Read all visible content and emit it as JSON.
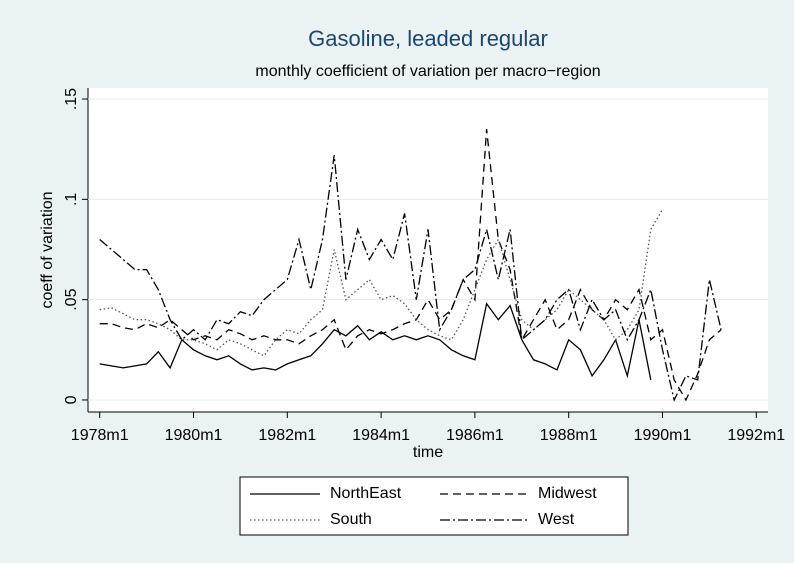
{
  "chart_data": {
    "type": "line",
    "title": "Gasoline, leaded regular",
    "subtitle": "monthly coefficient of variation per macro−region",
    "x_label": "time",
    "y_label": "coeff of variation",
    "x": [
      216,
      219,
      222,
      225,
      228,
      231,
      234,
      237,
      240,
      243,
      246,
      249,
      252,
      255,
      258,
      261,
      264,
      267,
      270,
      273,
      276,
      279,
      282,
      285,
      288,
      291,
      294,
      297,
      300,
      303,
      306,
      309,
      312,
      315,
      318,
      321,
      324,
      327,
      330,
      333,
      336,
      339,
      342,
      345,
      348,
      351,
      354,
      357,
      360,
      363,
      366,
      369,
      372,
      375
    ],
    "xlim": [
      213,
      387
    ],
    "xticks": [
      {
        "value": 216,
        "label": "1978m1"
      },
      {
        "value": 240,
        "label": "1980m1"
      },
      {
        "value": 264,
        "label": "1982m1"
      },
      {
        "value": 288,
        "label": "1984m1"
      },
      {
        "value": 312,
        "label": "1986m1"
      },
      {
        "value": 336,
        "label": "1988m1"
      },
      {
        "value": 360,
        "label": "1990m1"
      },
      {
        "value": 384,
        "label": "1992m1"
      }
    ],
    "ylim": [
      -0.006,
      0.1555
    ],
    "yticks": [
      0,
      {
        "value": 0.05,
        "label": ".05"
      },
      {
        "value": 0.1,
        "label": ".1"
      },
      {
        "value": 0.15,
        "label": ".15"
      }
    ],
    "grid": true,
    "legend_position": "bottom",
    "series": [
      {
        "name": "NorthEast",
        "color": "#000000",
        "dash": "solid",
        "values": [
          0.018,
          0.017,
          0.016,
          0.017,
          0.018,
          0.024,
          0.016,
          0.03,
          0.025,
          0.022,
          0.02,
          0.022,
          0.018,
          0.015,
          0.016,
          0.015,
          0.018,
          0.02,
          0.022,
          0.028,
          0.035,
          0.032,
          0.037,
          0.03,
          0.034,
          0.03,
          0.032,
          0.03,
          0.032,
          0.03,
          0.025,
          0.022,
          0.02,
          0.048,
          0.04,
          0.047,
          0.03,
          0.02,
          0.018,
          0.015,
          0.03,
          0.025,
          0.012,
          0.02,
          0.03,
          0.012,
          0.04,
          0.01,
          null,
          null,
          null,
          null,
          null,
          null
        ]
      },
      {
        "name": "Midwest",
        "color": "#000000",
        "dash": "dash",
        "values": [
          0.038,
          0.038,
          0.036,
          0.035,
          0.038,
          0.036,
          0.04,
          0.035,
          0.03,
          0.032,
          0.03,
          0.035,
          0.033,
          0.03,
          0.032,
          0.03,
          0.03,
          0.028,
          0.032,
          0.035,
          0.04,
          0.025,
          0.032,
          0.035,
          0.033,
          0.035,
          0.038,
          0.04,
          0.05,
          0.04,
          0.045,
          0.06,
          0.05,
          0.135,
          0.08,
          0.065,
          0.03,
          0.04,
          0.05,
          0.035,
          0.04,
          0.055,
          0.045,
          0.04,
          0.05,
          0.045,
          0.055,
          0.03,
          0.035,
          0.01,
          0,
          0.013,
          0.03,
          0.035
        ]
      },
      {
        "name": "South",
        "color": "#555555",
        "dash": "dot",
        "values": [
          0.045,
          0.046,
          0.043,
          0.04,
          0.04,
          0.038,
          0.035,
          0.03,
          0.03,
          0.028,
          0.025,
          0.03,
          0.028,
          0.025,
          0.022,
          0.03,
          0.035,
          0.033,
          0.04,
          0.045,
          0.075,
          0.05,
          0.055,
          0.06,
          0.05,
          0.052,
          0.048,
          0.04,
          0.035,
          0.032,
          0.03,
          0.04,
          0.055,
          0.07,
          0.08,
          0.06,
          0.04,
          0.035,
          0.04,
          0.045,
          0.055,
          0.05,
          0.045,
          0.04,
          0.03,
          0.035,
          0.045,
          0.085,
          0.095,
          null,
          null,
          null,
          null,
          null
        ]
      },
      {
        "name": "West",
        "color": "#000000",
        "dash": "dashdot",
        "values": [
          0.08,
          0.075,
          0.07,
          0.065,
          0.065,
          0.055,
          0.04,
          0.03,
          0.035,
          0.03,
          0.04,
          0.038,
          0.044,
          0.042,
          0.05,
          0.055,
          0.06,
          0.08,
          0.055,
          0.08,
          0.122,
          0.06,
          0.085,
          0.07,
          0.08,
          0.07,
          0.093,
          0.05,
          0.085,
          0.035,
          0.045,
          0.06,
          0.065,
          0.085,
          0.06,
          0.085,
          0.03,
          0.035,
          0.04,
          0.05,
          0.055,
          0.035,
          0.05,
          0.04,
          0.045,
          0.03,
          0.04,
          0.055,
          0.025,
          0,
          0.012,
          0.01,
          0.06,
          0.035
        ]
      }
    ]
  }
}
